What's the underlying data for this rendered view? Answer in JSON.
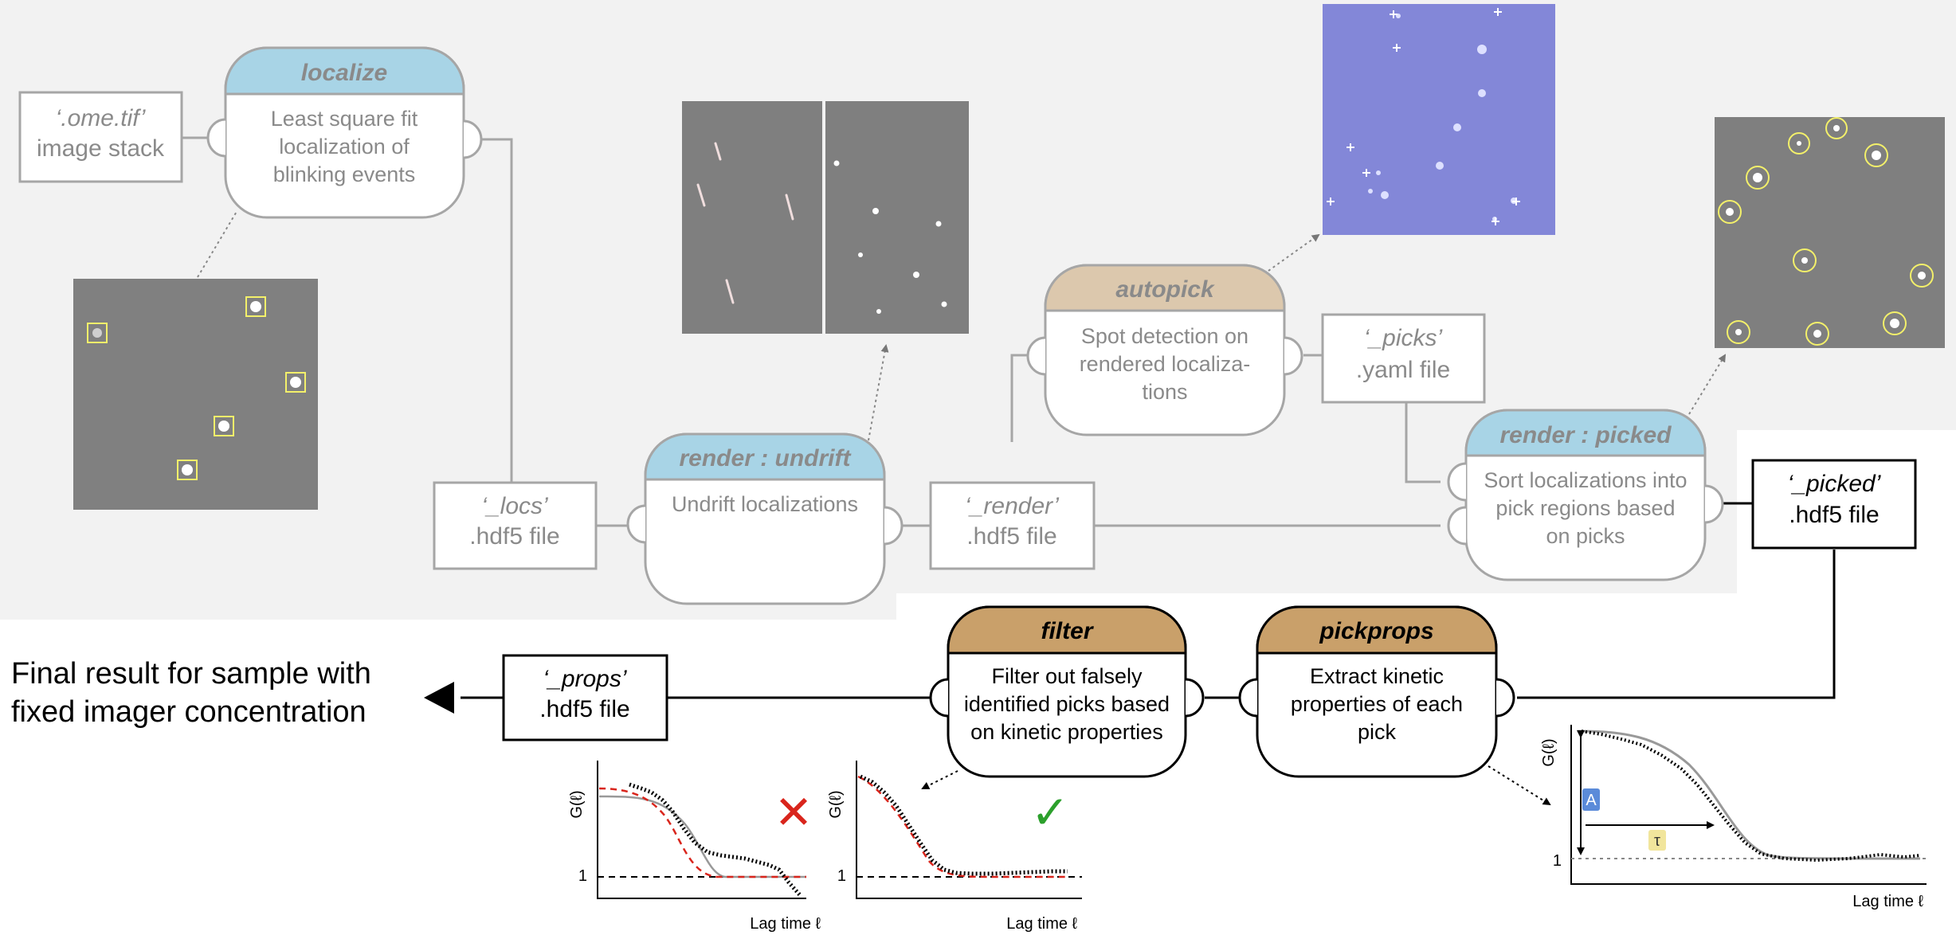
{
  "colors": {
    "background_panel": "#f2f2f2",
    "header_blue": "#a8d4e6",
    "header_tan": "#dcc8ad",
    "header_brown": "#c9a06a",
    "faded_stroke": "#a6a6a6",
    "faded_text": "#8a8a8a",
    "dark_stroke": "#000000",
    "fit_red": "#d9251c",
    "check_green": "#2ca02c",
    "annotation_blue": "#5b8bd9",
    "annotation_yellow": "#f1e59c",
    "pick_circle_yellow": "#f3f06a"
  },
  "files": {
    "ome_tif": {
      "line1": "‘.ome.tif’",
      "line2": "image stack"
    },
    "locs": {
      "line1": "‘_locs’",
      "line2": ".hdf5 file"
    },
    "render": {
      "line1": "‘_render’",
      "line2": ".hdf5 file"
    },
    "picks": {
      "line1": "‘_picks’",
      "line2": ".yaml file"
    },
    "picked": {
      "line1": "‘_picked’",
      "line2": ".hdf5 file"
    },
    "props": {
      "line1": "‘_props’",
      "line2": ".hdf5 file"
    }
  },
  "steps": {
    "localize": {
      "title": "localize",
      "lines": [
        "Least square fit",
        "localization of",
        "blinking events"
      ]
    },
    "undrift": {
      "title": "render : undrift",
      "lines": [
        "Undrift localizations"
      ]
    },
    "autopick": {
      "title": "autopick",
      "lines": [
        "Spot detection on",
        "rendered localiza-",
        "tions"
      ]
    },
    "picked": {
      "title": "render : picked",
      "lines": [
        "Sort localizations into",
        "pick regions based",
        "on picks"
      ]
    },
    "filter": {
      "title": "filter",
      "lines": [
        "Filter out falsely",
        "identified picks based",
        "on kinetic properties"
      ]
    },
    "pickprops": {
      "title": "pickprops",
      "lines": [
        "Extract kinetic",
        "properties of each",
        "pick"
      ]
    }
  },
  "final_result": {
    "line1": "Final result for sample with",
    "line2": "fixed imager concentration"
  },
  "plots": {
    "bad": {
      "ylabel": "G(ℓ)",
      "y1": "1",
      "xlabel": "Lag time ℓ",
      "mark": "✕",
      "mark_color": "#d9251c"
    },
    "good": {
      "ylabel": "G(ℓ)",
      "y1": "1",
      "xlabel": "Lag time ℓ",
      "mark": "✓",
      "mark_color": "#2ca02c"
    },
    "props": {
      "ylabel": "G(ℓ)",
      "y1": "1",
      "xlabel": "Lag time ℓ",
      "amp_label": "A",
      "tau_label": "τ"
    }
  },
  "icons": [
    "arrow-left-icon",
    "cross-icon",
    "check-icon"
  ]
}
